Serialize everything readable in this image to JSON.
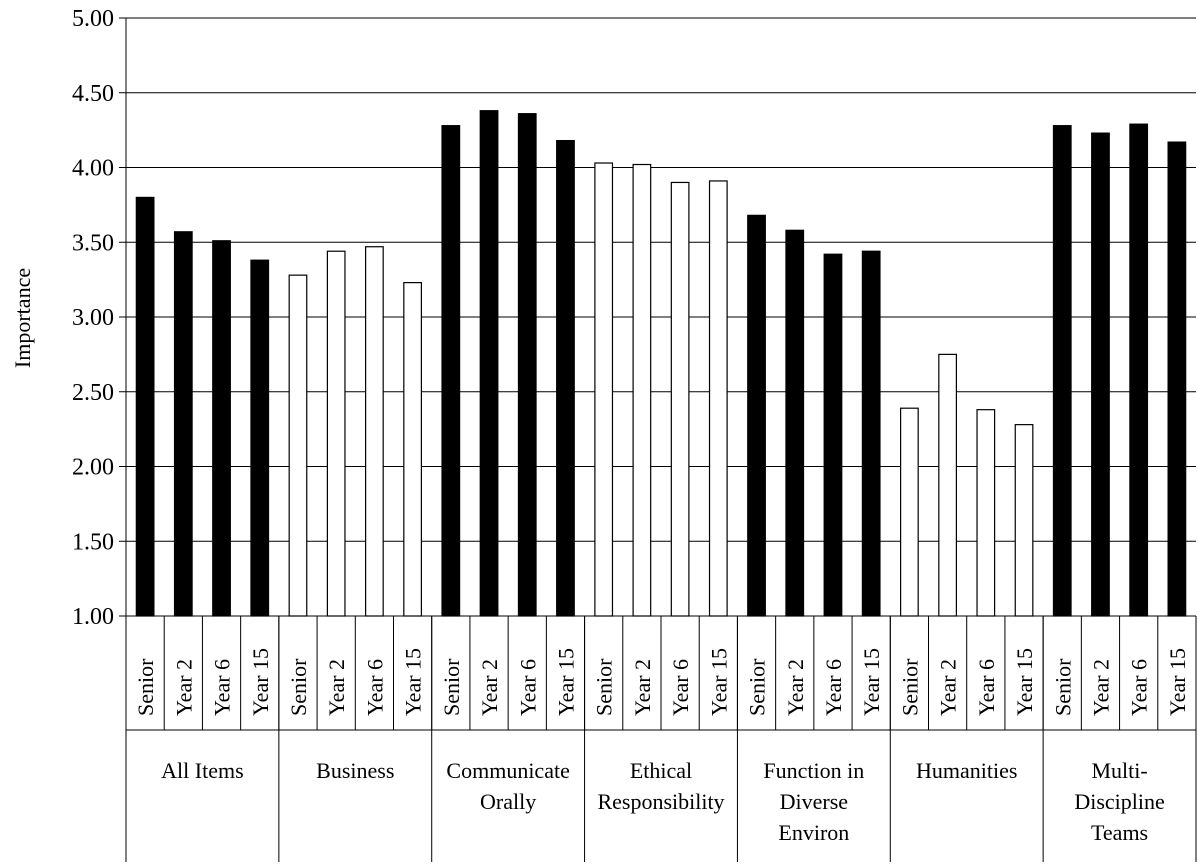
{
  "chart_data": {
    "type": "bar",
    "ylabel": "Importance",
    "ylim": [
      1.0,
      5.0
    ],
    "yticks": [
      "1.00",
      "1.50",
      "2.00",
      "2.50",
      "3.00",
      "3.50",
      "4.00",
      "4.50",
      "5.00"
    ],
    "grid": true,
    "subcategories": [
      "Senior",
      "Year 2",
      "Year 6",
      "Year 15"
    ],
    "groups": [
      {
        "label_lines": [
          "All Items"
        ],
        "fill": "#000000",
        "values": [
          3.8,
          3.57,
          3.51,
          3.38
        ]
      },
      {
        "label_lines": [
          "Business"
        ],
        "fill": "#ffffff",
        "values": [
          3.28,
          3.44,
          3.47,
          3.23
        ]
      },
      {
        "label_lines": [
          "Communicate",
          "Orally"
        ],
        "fill": "#000000",
        "values": [
          4.28,
          4.38,
          4.36,
          4.18
        ]
      },
      {
        "label_lines": [
          "Ethical",
          "Responsibility"
        ],
        "fill": "#ffffff",
        "values": [
          4.03,
          4.02,
          3.9,
          3.91
        ]
      },
      {
        "label_lines": [
          "Function in",
          "Diverse",
          "Environ"
        ],
        "fill": "#000000",
        "values": [
          3.68,
          3.58,
          3.42,
          3.44
        ]
      },
      {
        "label_lines": [
          "Humanities"
        ],
        "fill": "#ffffff",
        "values": [
          2.39,
          2.75,
          2.38,
          2.28
        ]
      },
      {
        "label_lines": [
          "Multi-",
          "Discipline",
          "Teams"
        ],
        "fill": "#000000",
        "values": [
          4.28,
          4.23,
          4.29,
          4.17
        ]
      }
    ]
  }
}
